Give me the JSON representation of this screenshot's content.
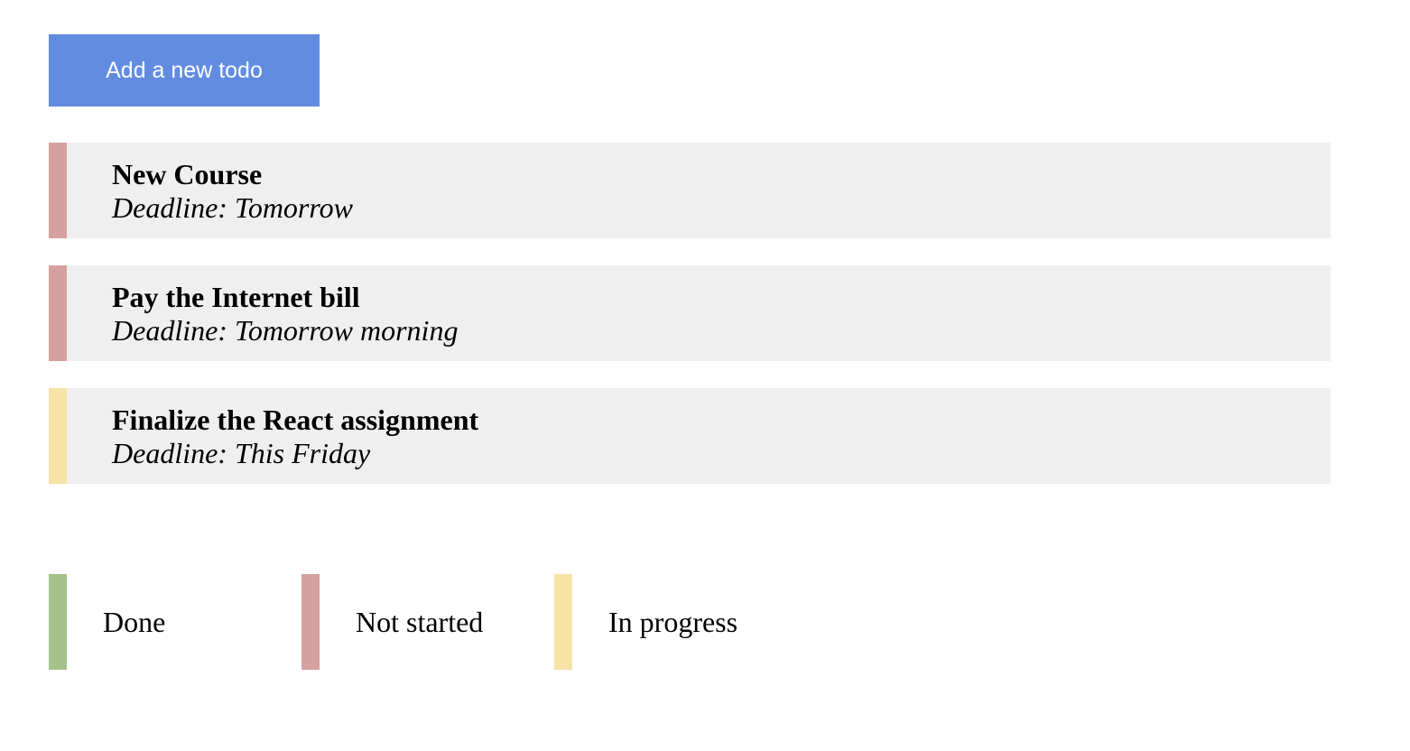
{
  "add_button": {
    "label": "Add a new todo",
    "color": "#628ce0"
  },
  "status_colors": {
    "done": "#a5c18b",
    "not_started": "#d5a09e",
    "in_progress": "#f7e3a7"
  },
  "todos": [
    {
      "title": "New Course",
      "deadline": "Deadline: Tomorrow",
      "status": "not_started"
    },
    {
      "title": "Pay the Internet bill",
      "deadline": "Deadline: Tomorrow morning",
      "status": "not_started"
    },
    {
      "title": "Finalize the React assignment",
      "deadline": "Deadline: This Friday",
      "status": "in_progress"
    }
  ],
  "legend": [
    {
      "label": "Done",
      "status": "done"
    },
    {
      "label": "Not started",
      "status": "not_started"
    },
    {
      "label": "In progress",
      "status": "in_progress"
    }
  ]
}
